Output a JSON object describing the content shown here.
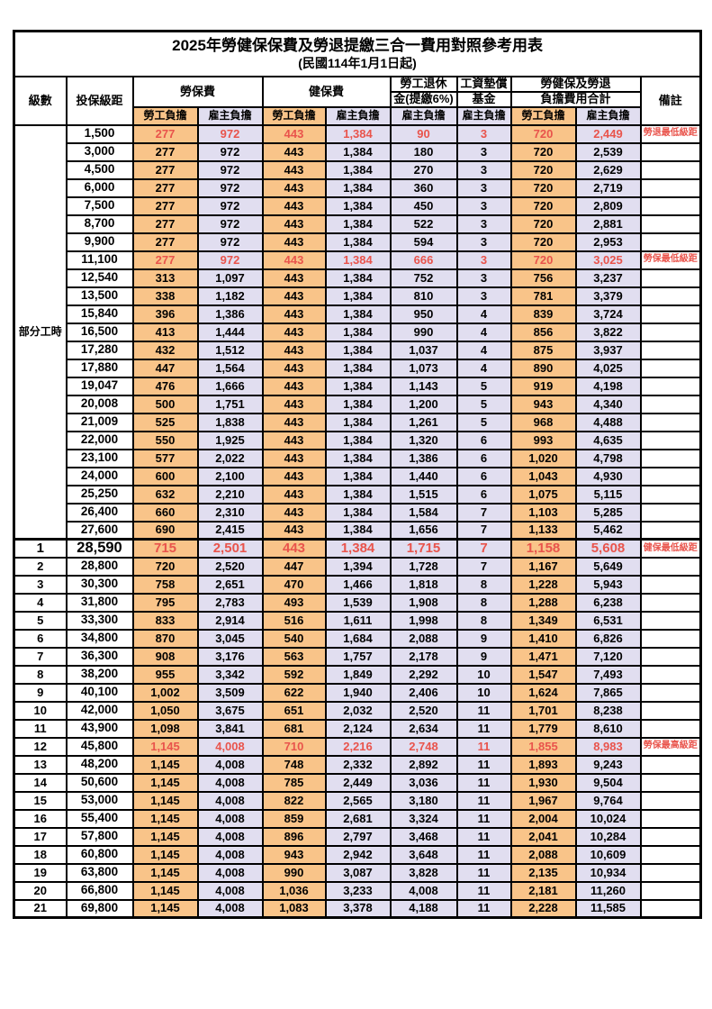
{
  "title": "2025年勞健保保費及勞退提繳三合一費用對照參考用表",
  "subtitle": "(民國114年1月1日起)",
  "colors": {
    "employee_bg": "#F9C489",
    "employer_bg": "#E1DEF0",
    "highlight_red": "#E9544C"
  },
  "header": {
    "level": "級數",
    "bracket": "投保級距",
    "labor_insurance": "勞保費",
    "health_insurance": "健保費",
    "pension_line1": "勞工退休",
    "pension_line2": "金(提繳6%)",
    "wage_fund_line1": "工資墊償",
    "wage_fund_line2": "基金",
    "total_line1": "勞健保及勞退",
    "total_line2": "負擔費用合計",
    "remark": "備註",
    "employee_label": "勞工負擔",
    "employer_label": "雇主負擔"
  },
  "part_time_label": "部分工時",
  "part_time_rowspan": 23,
  "rows": [
    {
      "level": "",
      "bracket": "1,500",
      "values": [
        "277",
        "972",
        "443",
        "1,384",
        "90",
        "3",
        "720",
        "2,449"
      ],
      "note": "勞退最低級距",
      "highlight": true,
      "emphasis": false
    },
    {
      "level": "",
      "bracket": "3,000",
      "values": [
        "277",
        "972",
        "443",
        "1,384",
        "180",
        "3",
        "720",
        "2,539"
      ],
      "note": "",
      "highlight": false,
      "emphasis": false
    },
    {
      "level": "",
      "bracket": "4,500",
      "values": [
        "277",
        "972",
        "443",
        "1,384",
        "270",
        "3",
        "720",
        "2,629"
      ],
      "note": "",
      "highlight": false,
      "emphasis": false
    },
    {
      "level": "",
      "bracket": "6,000",
      "values": [
        "277",
        "972",
        "443",
        "1,384",
        "360",
        "3",
        "720",
        "2,719"
      ],
      "note": "",
      "highlight": false,
      "emphasis": false
    },
    {
      "level": "",
      "bracket": "7,500",
      "values": [
        "277",
        "972",
        "443",
        "1,384",
        "450",
        "3",
        "720",
        "2,809"
      ],
      "note": "",
      "highlight": false,
      "emphasis": false
    },
    {
      "level": "",
      "bracket": "8,700",
      "values": [
        "277",
        "972",
        "443",
        "1,384",
        "522",
        "3",
        "720",
        "2,881"
      ],
      "note": "",
      "highlight": false,
      "emphasis": false
    },
    {
      "level": "",
      "bracket": "9,900",
      "values": [
        "277",
        "972",
        "443",
        "1,384",
        "594",
        "3",
        "720",
        "2,953"
      ],
      "note": "",
      "highlight": false,
      "emphasis": false
    },
    {
      "level": "",
      "bracket": "11,100",
      "values": [
        "277",
        "972",
        "443",
        "1,384",
        "666",
        "3",
        "720",
        "3,025"
      ],
      "note": "勞保最低級距",
      "highlight": true,
      "emphasis": false
    },
    {
      "level": "",
      "bracket": "12,540",
      "values": [
        "313",
        "1,097",
        "443",
        "1,384",
        "752",
        "3",
        "756",
        "3,237"
      ],
      "note": "",
      "highlight": false,
      "emphasis": false
    },
    {
      "level": "",
      "bracket": "13,500",
      "values": [
        "338",
        "1,182",
        "443",
        "1,384",
        "810",
        "3",
        "781",
        "3,379"
      ],
      "note": "",
      "highlight": false,
      "emphasis": false
    },
    {
      "level": "",
      "bracket": "15,840",
      "values": [
        "396",
        "1,386",
        "443",
        "1,384",
        "950",
        "4",
        "839",
        "3,724"
      ],
      "note": "",
      "highlight": false,
      "emphasis": false
    },
    {
      "level": "",
      "bracket": "16,500",
      "values": [
        "413",
        "1,444",
        "443",
        "1,384",
        "990",
        "4",
        "856",
        "3,822"
      ],
      "note": "",
      "highlight": false,
      "emphasis": false
    },
    {
      "level": "",
      "bracket": "17,280",
      "values": [
        "432",
        "1,512",
        "443",
        "1,384",
        "1,037",
        "4",
        "875",
        "3,937"
      ],
      "note": "",
      "highlight": false,
      "emphasis": false
    },
    {
      "level": "",
      "bracket": "17,880",
      "values": [
        "447",
        "1,564",
        "443",
        "1,384",
        "1,073",
        "4",
        "890",
        "4,025"
      ],
      "note": "",
      "highlight": false,
      "emphasis": false
    },
    {
      "level": "",
      "bracket": "19,047",
      "values": [
        "476",
        "1,666",
        "443",
        "1,384",
        "1,143",
        "5",
        "919",
        "4,198"
      ],
      "note": "",
      "highlight": false,
      "emphasis": false
    },
    {
      "level": "",
      "bracket": "20,008",
      "values": [
        "500",
        "1,751",
        "443",
        "1,384",
        "1,200",
        "5",
        "943",
        "4,340"
      ],
      "note": "",
      "highlight": false,
      "emphasis": false
    },
    {
      "level": "",
      "bracket": "21,009",
      "values": [
        "525",
        "1,838",
        "443",
        "1,384",
        "1,261",
        "5",
        "968",
        "4,488"
      ],
      "note": "",
      "highlight": false,
      "emphasis": false
    },
    {
      "level": "",
      "bracket": "22,000",
      "values": [
        "550",
        "1,925",
        "443",
        "1,384",
        "1,320",
        "6",
        "993",
        "4,635"
      ],
      "note": "",
      "highlight": false,
      "emphasis": false
    },
    {
      "level": "",
      "bracket": "23,100",
      "values": [
        "577",
        "2,022",
        "443",
        "1,384",
        "1,386",
        "6",
        "1,020",
        "4,798"
      ],
      "note": "",
      "highlight": false,
      "emphasis": false
    },
    {
      "level": "",
      "bracket": "24,000",
      "values": [
        "600",
        "2,100",
        "443",
        "1,384",
        "1,440",
        "6",
        "1,043",
        "4,930"
      ],
      "note": "",
      "highlight": false,
      "emphasis": false
    },
    {
      "level": "",
      "bracket": "25,250",
      "values": [
        "632",
        "2,210",
        "443",
        "1,384",
        "1,515",
        "6",
        "1,075",
        "5,115"
      ],
      "note": "",
      "highlight": false,
      "emphasis": false
    },
    {
      "level": "",
      "bracket": "26,400",
      "values": [
        "660",
        "2,310",
        "443",
        "1,384",
        "1,584",
        "7",
        "1,103",
        "5,285"
      ],
      "note": "",
      "highlight": false,
      "emphasis": false
    },
    {
      "level": "",
      "bracket": "27,600",
      "values": [
        "690",
        "2,415",
        "443",
        "1,384",
        "1,656",
        "7",
        "1,133",
        "5,462"
      ],
      "note": "",
      "highlight": false,
      "emphasis": false
    },
    {
      "level": "1",
      "bracket": "28,590",
      "values": [
        "715",
        "2,501",
        "443",
        "1,384",
        "1,715",
        "7",
        "1,158",
        "5,608"
      ],
      "note": "健保最低級距",
      "highlight": true,
      "emphasis": true
    },
    {
      "level": "2",
      "bracket": "28,800",
      "values": [
        "720",
        "2,520",
        "447",
        "1,394",
        "1,728",
        "7",
        "1,167",
        "5,649"
      ],
      "note": "",
      "highlight": false,
      "emphasis": false
    },
    {
      "level": "3",
      "bracket": "30,300",
      "values": [
        "758",
        "2,651",
        "470",
        "1,466",
        "1,818",
        "8",
        "1,228",
        "5,943"
      ],
      "note": "",
      "highlight": false,
      "emphasis": false
    },
    {
      "level": "4",
      "bracket": "31,800",
      "values": [
        "795",
        "2,783",
        "493",
        "1,539",
        "1,908",
        "8",
        "1,288",
        "6,238"
      ],
      "note": "",
      "highlight": false,
      "emphasis": false
    },
    {
      "level": "5",
      "bracket": "33,300",
      "values": [
        "833",
        "2,914",
        "516",
        "1,611",
        "1,998",
        "8",
        "1,349",
        "6,531"
      ],
      "note": "",
      "highlight": false,
      "emphasis": false
    },
    {
      "level": "6",
      "bracket": "34,800",
      "values": [
        "870",
        "3,045",
        "540",
        "1,684",
        "2,088",
        "9",
        "1,410",
        "6,826"
      ],
      "note": "",
      "highlight": false,
      "emphasis": false
    },
    {
      "level": "7",
      "bracket": "36,300",
      "values": [
        "908",
        "3,176",
        "563",
        "1,757",
        "2,178",
        "9",
        "1,471",
        "7,120"
      ],
      "note": "",
      "highlight": false,
      "emphasis": false
    },
    {
      "level": "8",
      "bracket": "38,200",
      "values": [
        "955",
        "3,342",
        "592",
        "1,849",
        "2,292",
        "10",
        "1,547",
        "7,493"
      ],
      "note": "",
      "highlight": false,
      "emphasis": false
    },
    {
      "level": "9",
      "bracket": "40,100",
      "values": [
        "1,002",
        "3,509",
        "622",
        "1,940",
        "2,406",
        "10",
        "1,624",
        "7,865"
      ],
      "note": "",
      "highlight": false,
      "emphasis": false
    },
    {
      "level": "10",
      "bracket": "42,000",
      "values": [
        "1,050",
        "3,675",
        "651",
        "2,032",
        "2,520",
        "11",
        "1,701",
        "8,238"
      ],
      "note": "",
      "highlight": false,
      "emphasis": false
    },
    {
      "level": "11",
      "bracket": "43,900",
      "values": [
        "1,098",
        "3,841",
        "681",
        "2,124",
        "2,634",
        "11",
        "1,779",
        "8,610"
      ],
      "note": "",
      "highlight": false,
      "emphasis": false
    },
    {
      "level": "12",
      "bracket": "45,800",
      "values": [
        "1,145",
        "4,008",
        "710",
        "2,216",
        "2,748",
        "11",
        "1,855",
        "8,983"
      ],
      "note": "勞保最高級距",
      "highlight": true,
      "emphasis": false
    },
    {
      "level": "13",
      "bracket": "48,200",
      "values": [
        "1,145",
        "4,008",
        "748",
        "2,332",
        "2,892",
        "11",
        "1,893",
        "9,243"
      ],
      "note": "",
      "highlight": false,
      "emphasis": false
    },
    {
      "level": "14",
      "bracket": "50,600",
      "values": [
        "1,145",
        "4,008",
        "785",
        "2,449",
        "3,036",
        "11",
        "1,930",
        "9,504"
      ],
      "note": "",
      "highlight": false,
      "emphasis": false
    },
    {
      "level": "15",
      "bracket": "53,000",
      "values": [
        "1,145",
        "4,008",
        "822",
        "2,565",
        "3,180",
        "11",
        "1,967",
        "9,764"
      ],
      "note": "",
      "highlight": false,
      "emphasis": false
    },
    {
      "level": "16",
      "bracket": "55,400",
      "values": [
        "1,145",
        "4,008",
        "859",
        "2,681",
        "3,324",
        "11",
        "2,004",
        "10,024"
      ],
      "note": "",
      "highlight": false,
      "emphasis": false
    },
    {
      "level": "17",
      "bracket": "57,800",
      "values": [
        "1,145",
        "4,008",
        "896",
        "2,797",
        "3,468",
        "11",
        "2,041",
        "10,284"
      ],
      "note": "",
      "highlight": false,
      "emphasis": false
    },
    {
      "level": "18",
      "bracket": "60,800",
      "values": [
        "1,145",
        "4,008",
        "943",
        "2,942",
        "3,648",
        "11",
        "2,088",
        "10,609"
      ],
      "note": "",
      "highlight": false,
      "emphasis": false
    },
    {
      "level": "19",
      "bracket": "63,800",
      "values": [
        "1,145",
        "4,008",
        "990",
        "3,087",
        "3,828",
        "11",
        "2,135",
        "10,934"
      ],
      "note": "",
      "highlight": false,
      "emphasis": false
    },
    {
      "level": "20",
      "bracket": "66,800",
      "values": [
        "1,145",
        "4,008",
        "1,036",
        "3,233",
        "4,008",
        "11",
        "2,181",
        "11,260"
      ],
      "note": "",
      "highlight": false,
      "emphasis": false
    },
    {
      "level": "21",
      "bracket": "69,800",
      "values": [
        "1,145",
        "4,008",
        "1,083",
        "3,378",
        "4,188",
        "11",
        "2,228",
        "11,585"
      ],
      "note": "",
      "highlight": false,
      "emphasis": false
    }
  ]
}
